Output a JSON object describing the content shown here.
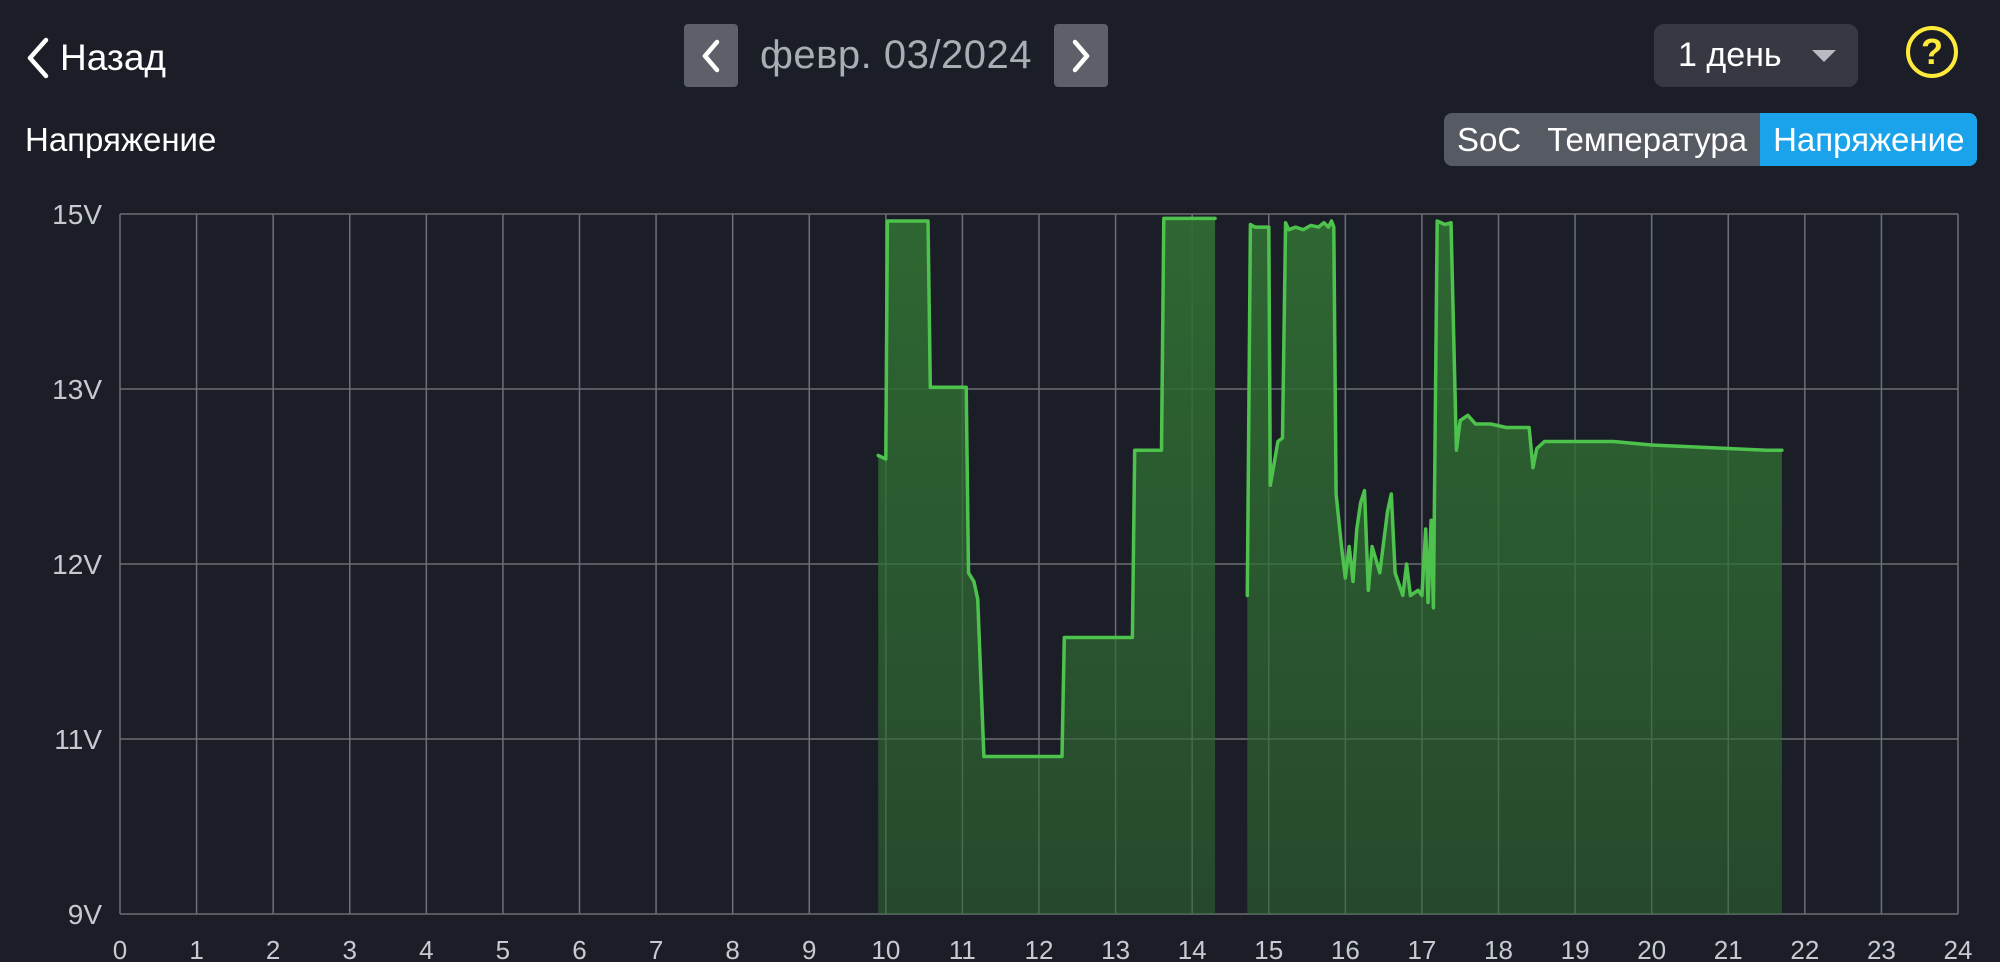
{
  "header": {
    "back_label": "Назад",
    "back_icon": "chevron-left-icon",
    "date_label": "февр. 03/2024",
    "prev_icon": "chevron-left-icon",
    "next_icon": "chevron-right-icon",
    "range_label": "1 день",
    "help_label": "?"
  },
  "chart_section": {
    "title": "Напряжение",
    "tabs": [
      {
        "label": "SoC",
        "active": false
      },
      {
        "label": "Температура",
        "active": false
      },
      {
        "label": "Напряжение",
        "active": true
      }
    ]
  },
  "colors": {
    "background": "#1b1e27",
    "line": "#4dc24c",
    "fill": "#2f6b32",
    "grid": "#6c6f76",
    "accent": "#1aa3ea",
    "help": "#ffea3b"
  },
  "chart_data": {
    "type": "area",
    "ylabel": "",
    "xlabel": "",
    "y_ticks": [
      {
        "value": 9,
        "label": "9V"
      },
      {
        "value": 11,
        "label": "11V"
      },
      {
        "value": 12,
        "label": "12V"
      },
      {
        "value": 13,
        "label": "13V"
      },
      {
        "value": 15,
        "label": "15V"
      }
    ],
    "x_ticks": [
      "0",
      "1",
      "2",
      "3",
      "4",
      "5",
      "6",
      "7",
      "8",
      "9",
      "10",
      "11",
      "12",
      "13",
      "14",
      "15",
      "16",
      "17",
      "18",
      "19",
      "20",
      "21",
      "22",
      "23",
      "24"
    ],
    "xlim": [
      0,
      24
    ],
    "grid": true,
    "series": [
      {
        "values": [
          [
            [
              9.9,
              12.62
            ],
            [
              10.0,
              12.6
            ],
            [
              10.02,
              14.92
            ],
            [
              10.55,
              14.92
            ],
            [
              10.58,
              13.02
            ],
            [
              11.05,
              13.02
            ],
            [
              11.08,
              11.95
            ],
            [
              11.15,
              11.9
            ],
            [
              11.2,
              11.8
            ],
            [
              11.28,
              10.8
            ],
            [
              12.3,
              10.8
            ],
            [
              12.33,
              11.58
            ],
            [
              13.22,
              11.58
            ],
            [
              13.25,
              12.65
            ],
            [
              13.6,
              12.65
            ],
            [
              13.63,
              14.95
            ],
            [
              14.3,
              14.95
            ]
          ],
          [
            [
              14.72,
              11.82
            ],
            [
              14.76,
              14.88
            ],
            [
              14.82,
              14.85
            ],
            [
              15.0,
              14.85
            ],
            [
              15.02,
              12.45
            ],
            [
              15.08,
              12.6
            ],
            [
              15.12,
              12.7
            ],
            [
              15.18,
              12.72
            ],
            [
              15.22,
              14.9
            ],
            [
              15.26,
              14.82
            ],
            [
              15.35,
              14.85
            ],
            [
              15.45,
              14.82
            ],
            [
              15.55,
              14.87
            ],
            [
              15.65,
              14.85
            ],
            [
              15.72,
              14.9
            ],
            [
              15.78,
              14.85
            ],
            [
              15.82,
              14.92
            ],
            [
              15.85,
              14.85
            ],
            [
              15.88,
              12.4
            ],
            [
              15.95,
              12.1
            ],
            [
              16.0,
              11.92
            ],
            [
              16.05,
              12.1
            ],
            [
              16.1,
              11.9
            ],
            [
              16.15,
              12.2
            ],
            [
              16.2,
              12.35
            ],
            [
              16.25,
              12.42
            ],
            [
              16.3,
              11.85
            ],
            [
              16.35,
              12.1
            ],
            [
              16.45,
              11.95
            ],
            [
              16.55,
              12.3
            ],
            [
              16.6,
              12.4
            ],
            [
              16.65,
              11.95
            ],
            [
              16.75,
              11.82
            ],
            [
              16.8,
              12.0
            ],
            [
              16.85,
              11.82
            ],
            [
              16.95,
              11.85
            ],
            [
              17.0,
              11.82
            ],
            [
              17.05,
              12.2
            ],
            [
              17.08,
              11.78
            ],
            [
              17.12,
              12.25
            ],
            [
              17.15,
              11.75
            ],
            [
              17.2,
              14.92
            ],
            [
              17.3,
              14.88
            ],
            [
              17.38,
              14.9
            ],
            [
              17.45,
              12.65
            ],
            [
              17.5,
              12.82
            ],
            [
              17.6,
              12.85
            ],
            [
              17.7,
              12.8
            ],
            [
              17.9,
              12.8
            ],
            [
              18.1,
              12.78
            ],
            [
              18.4,
              12.78
            ],
            [
              18.45,
              12.55
            ],
            [
              18.5,
              12.66
            ],
            [
              18.6,
              12.7
            ],
            [
              19.0,
              12.7
            ],
            [
              19.5,
              12.7
            ],
            [
              20.0,
              12.68
            ],
            [
              20.5,
              12.67
            ],
            [
              21.0,
              12.66
            ],
            [
              21.5,
              12.65
            ],
            [
              21.7,
              12.65
            ]
          ]
        ]
      }
    ]
  }
}
